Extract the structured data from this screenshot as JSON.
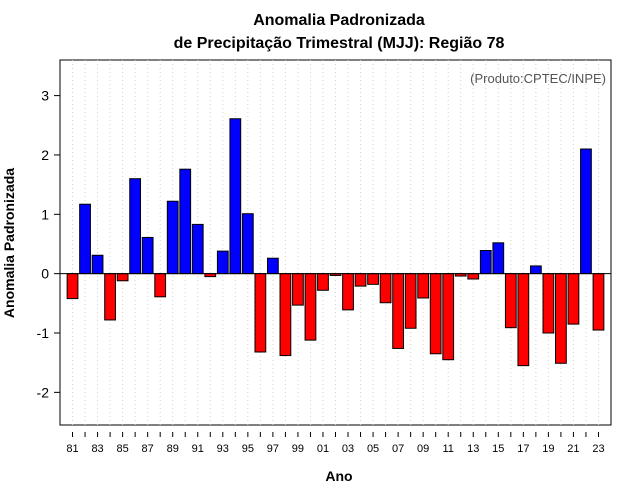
{
  "chart_data": {
    "type": "bar",
    "title_line1": "Anomalia Padronizada",
    "title_line2": "de Precipitação Trimestral (MJJ): Região 78",
    "xlabel": "Ano",
    "ylabel": "Anomalia Padronizada",
    "credit": "(Produto:CPTEC/INPE)",
    "ylim": [
      -2.55,
      3.6
    ],
    "yticks": [
      -2,
      -1,
      0,
      1,
      2,
      3
    ],
    "xtick_labels": [
      "81",
      "83",
      "85",
      "87",
      "89",
      "91",
      "93",
      "95",
      "97",
      "99",
      "01",
      "03",
      "05",
      "07",
      "09",
      "11",
      "13",
      "15",
      "17",
      "19",
      "21",
      "23"
    ],
    "positive_color": "#0000ff",
    "negative_color": "#ff0000",
    "categories": [
      "1981",
      "1982",
      "1983",
      "1984",
      "1985",
      "1986",
      "1987",
      "1988",
      "1989",
      "1990",
      "1991",
      "1992",
      "1993",
      "1994",
      "1995",
      "1996",
      "1997",
      "1998",
      "1999",
      "2000",
      "2001",
      "2002",
      "2003",
      "2004",
      "2005",
      "2006",
      "2007",
      "2008",
      "2009",
      "2010",
      "2011",
      "2012",
      "2013",
      "2014",
      "2015",
      "2016",
      "2017",
      "2018",
      "2019",
      "2020",
      "2021",
      "2022",
      "2023"
    ],
    "values": [
      -0.42,
      1.17,
      0.31,
      -0.78,
      -0.12,
      1.6,
      0.61,
      -0.39,
      1.22,
      1.76,
      0.83,
      -0.05,
      0.38,
      2.61,
      1.01,
      -1.32,
      0.26,
      -1.38,
      -0.53,
      -1.12,
      -0.28,
      -0.03,
      -0.61,
      -0.21,
      -0.18,
      -0.49,
      -1.26,
      -0.92,
      -0.41,
      -1.35,
      -1.45,
      -0.04,
      -0.09,
      0.39,
      0.52,
      -0.91,
      -1.55,
      0.13,
      -1.0,
      -1.51,
      -0.85,
      2.1,
      -0.95
    ]
  }
}
